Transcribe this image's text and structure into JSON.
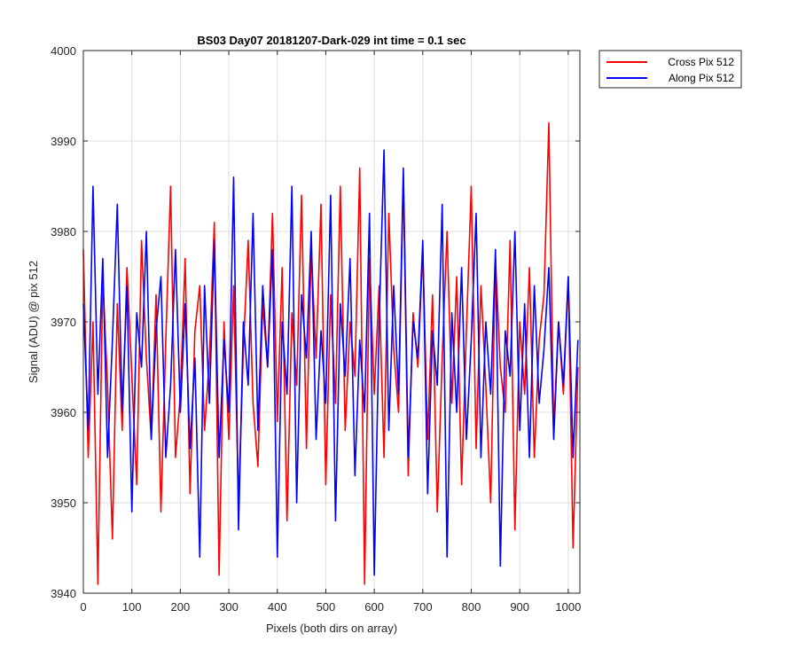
{
  "chart_data": {
    "type": "line",
    "title": "BS03 Day07 20181207-Dark-029 int time = 0.1 sec",
    "xlabel": "Pixels (both dirs on array)",
    "ylabel": "Signal (ADU) @ pix 512",
    "xlim": [
      0,
      1024
    ],
    "ylim": [
      3940,
      4000
    ],
    "xticks": [
      0,
      100,
      200,
      300,
      400,
      500,
      600,
      700,
      800,
      900,
      1000
    ],
    "yticks": [
      3940,
      3950,
      3960,
      3970,
      3980,
      3990,
      4000
    ],
    "grid": true,
    "legend_position": "outside-top-right",
    "series": [
      {
        "name": "Cross Pix 512",
        "color": "#ff0000",
        "x": [
          0,
          10,
          20,
          30,
          40,
          50,
          60,
          70,
          80,
          90,
          100,
          110,
          120,
          130,
          140,
          150,
          160,
          170,
          180,
          190,
          200,
          210,
          220,
          230,
          240,
          250,
          260,
          270,
          280,
          290,
          300,
          310,
          320,
          330,
          340,
          350,
          360,
          370,
          380,
          390,
          400,
          410,
          420,
          430,
          440,
          450,
          460,
          470,
          480,
          490,
          500,
          510,
          520,
          530,
          540,
          550,
          560,
          570,
          580,
          590,
          600,
          610,
          620,
          630,
          640,
          650,
          660,
          670,
          680,
          690,
          700,
          710,
          720,
          730,
          740,
          750,
          760,
          770,
          780,
          790,
          800,
          810,
          820,
          830,
          840,
          850,
          860,
          870,
          880,
          890,
          900,
          910,
          920,
          930,
          940,
          950,
          960,
          970,
          980,
          990,
          1000,
          1010,
          1020
        ],
        "values": [
          3978,
          3955,
          3970,
          3941,
          3975,
          3963,
          3946,
          3972,
          3958,
          3976,
          3964,
          3952,
          3979,
          3966,
          3957,
          3973,
          3949,
          3968,
          3985,
          3955,
          3962,
          3977,
          3951,
          3969,
          3974,
          3958,
          3966,
          3981,
          3942,
          3970,
          3957,
          3974,
          3950,
          3967,
          3979,
          3961,
          3954,
          3972,
          3965,
          3982,
          3959,
          3976,
          3948,
          3971,
          3963,
          3984,
          3956,
          3978,
          3966,
          3983,
          3952,
          3973,
          3961,
          3985,
          3958,
          3970,
          3964,
          3987,
          3941,
          3977,
          3962,
          3974,
          3955,
          3982,
          3967,
          3960,
          3986,
          3953,
          3971,
          3965,
          3978,
          3957,
          3973,
          3949,
          3966,
          3980,
          3961,
          3975,
          3952,
          3969,
          3985,
          3956,
          3974,
          3963,
          3950,
          3977,
          3965,
          3960,
          3979,
          3947,
          3970,
          3962,
          3976,
          3955,
          3968,
          3973,
          3992,
          3958,
          3970,
          3962,
          3975,
          3945,
          3965
        ]
      },
      {
        "name": "Along Pix 512",
        "color": "#0000ff",
        "x": [
          0,
          10,
          20,
          30,
          40,
          50,
          60,
          70,
          80,
          90,
          100,
          110,
          120,
          130,
          140,
          150,
          160,
          170,
          180,
          190,
          200,
          210,
          220,
          230,
          240,
          250,
          260,
          270,
          280,
          290,
          300,
          310,
          320,
          330,
          340,
          350,
          360,
          370,
          380,
          390,
          400,
          410,
          420,
          430,
          440,
          450,
          460,
          470,
          480,
          490,
          500,
          510,
          520,
          530,
          540,
          550,
          560,
          570,
          580,
          590,
          600,
          610,
          620,
          630,
          640,
          650,
          660,
          670,
          680,
          690,
          700,
          710,
          720,
          730,
          740,
          750,
          760,
          770,
          780,
          790,
          800,
          810,
          820,
          830,
          840,
          850,
          860,
          870,
          880,
          890,
          900,
          910,
          920,
          930,
          940,
          950,
          960,
          970,
          980,
          990,
          1000,
          1010,
          1020
        ],
        "values": [
          3972,
          3958,
          3985,
          3962,
          3977,
          3955,
          3968,
          3983,
          3960,
          3974,
          3949,
          3971,
          3965,
          3980,
          3957,
          3969,
          3975,
          3955,
          3963,
          3978,
          3960,
          3972,
          3956,
          3966,
          3944,
          3974,
          3961,
          3979,
          3955,
          3968,
          3960,
          3986,
          3947,
          3970,
          3963,
          3982,
          3958,
          3974,
          3965,
          3978,
          3944,
          3970,
          3962,
          3985,
          3950,
          3973,
          3966,
          3980,
          3957,
          3969,
          3961,
          3984,
          3948,
          3972,
          3964,
          3977,
          3953,
          3968,
          3960,
          3982,
          3942,
          3970,
          3989,
          3958,
          3974,
          3962,
          3987,
          3955,
          3970,
          3966,
          3979,
          3951,
          3969,
          3963,
          3983,
          3944,
          3971,
          3960,
          3976,
          3957,
          3968,
          3982,
          3955,
          3970,
          3962,
          3978,
          3943,
          3969,
          3964,
          3980,
          3958,
          3972,
          3955,
          3974,
          3961,
          3967,
          3976,
          3957,
          3970,
          3963,
          3975,
          3955,
          3968
        ]
      }
    ]
  }
}
